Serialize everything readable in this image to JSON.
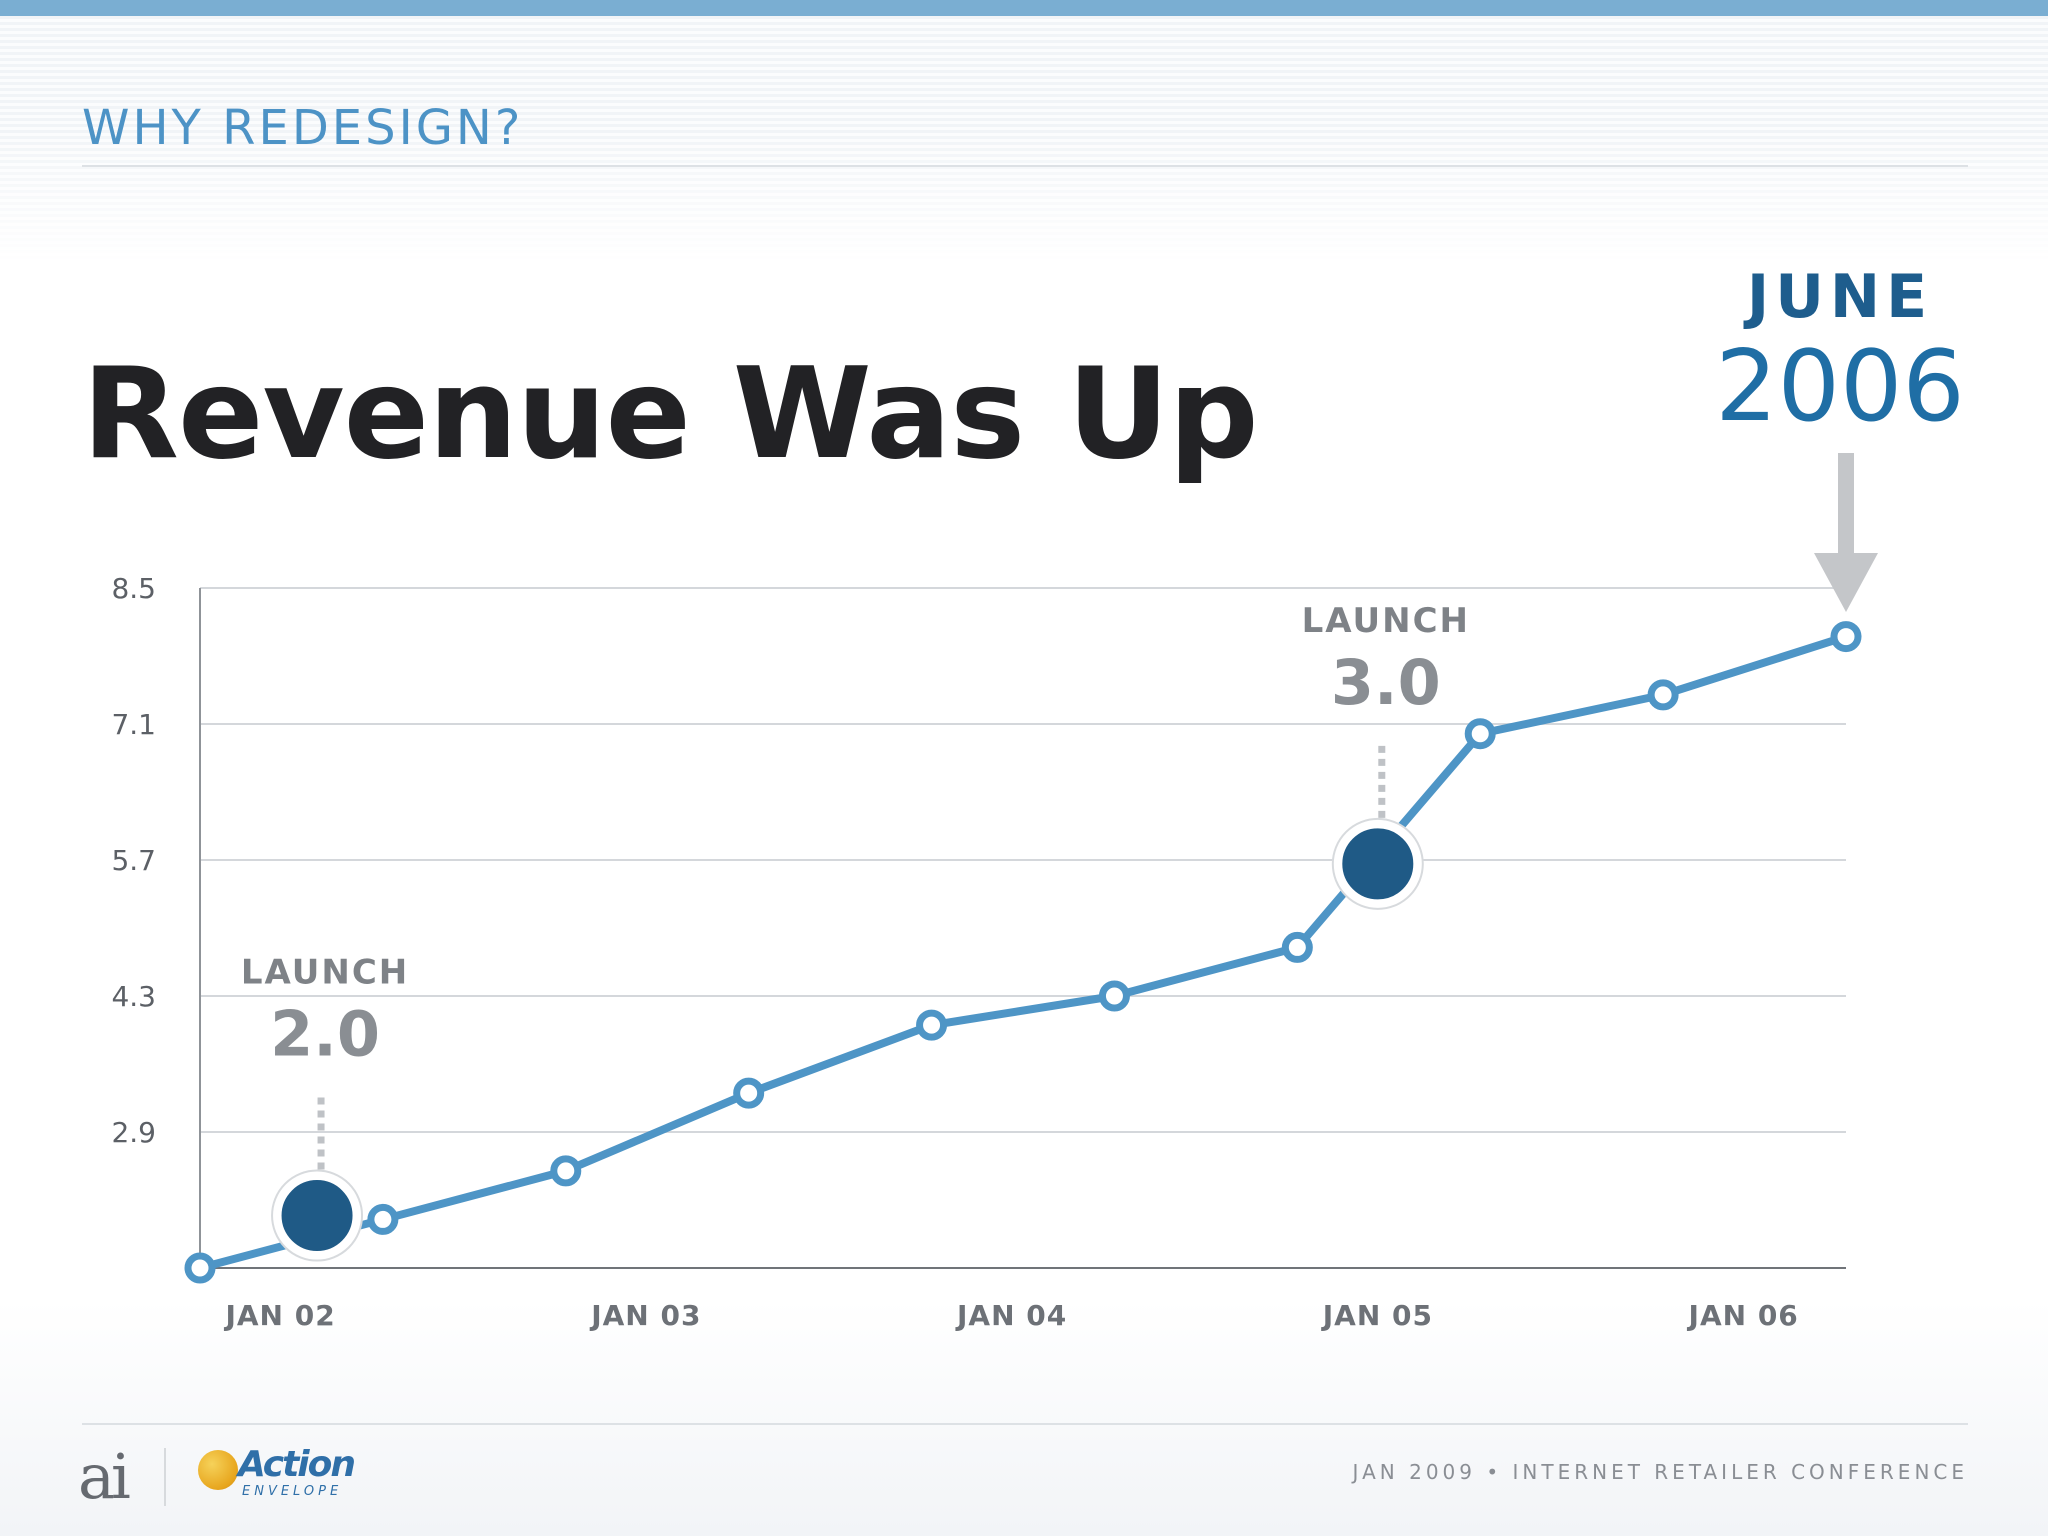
{
  "slide": {
    "section_title": "WHY REDESIGN?",
    "title": "Revenue Was Up",
    "date_month": "JUNE",
    "date_year": "2006",
    "footer": "JAN 2009 • INTERNET RETAILER CONFERENCE",
    "logo_ai": "ai",
    "logo_action_word": "Action",
    "logo_action_sub": "ENVELOPE"
  },
  "chart_data": {
    "type": "line",
    "title": "",
    "xlabel": "",
    "ylabel": "",
    "y_ticks": [
      "8.5",
      "7.1",
      "5.7",
      "4.3",
      "2.9"
    ],
    "y_tick_values": [
      8.5,
      7.1,
      5.7,
      4.3,
      2.9
    ],
    "ylim": [
      1.5,
      8.5
    ],
    "x_ticks": [
      "JAN 02",
      "JAN 03",
      "JAN 04",
      "JAN 05",
      "JAN 06"
    ],
    "x_tick_values": [
      2002.0,
      2003.0,
      2004.0,
      2005.0,
      2006.0
    ],
    "xlim": [
      2001.64,
      2006.14
    ],
    "grid": true,
    "legend": "none",
    "line_color": "#4e95c6",
    "marker_color": "#1f5a86",
    "series": [
      {
        "x": [
          2001.64,
          2002.14,
          2002.64,
          2003.14,
          2003.64,
          2004.14,
          2004.64,
          2005.14,
          2005.64,
          2006.14
        ],
        "y": [
          1.5,
          2.0,
          2.5,
          3.3,
          4.0,
          4.3,
          4.8,
          7.0,
          7.4,
          8.0
        ]
      }
    ],
    "annotations": [
      {
        "label": "LAUNCH",
        "value": "2.0",
        "x": 2001.96,
        "y": 2.04
      },
      {
        "label": "LAUNCH",
        "value": "3.0",
        "x": 2004.86,
        "y": 5.66
      }
    ]
  }
}
